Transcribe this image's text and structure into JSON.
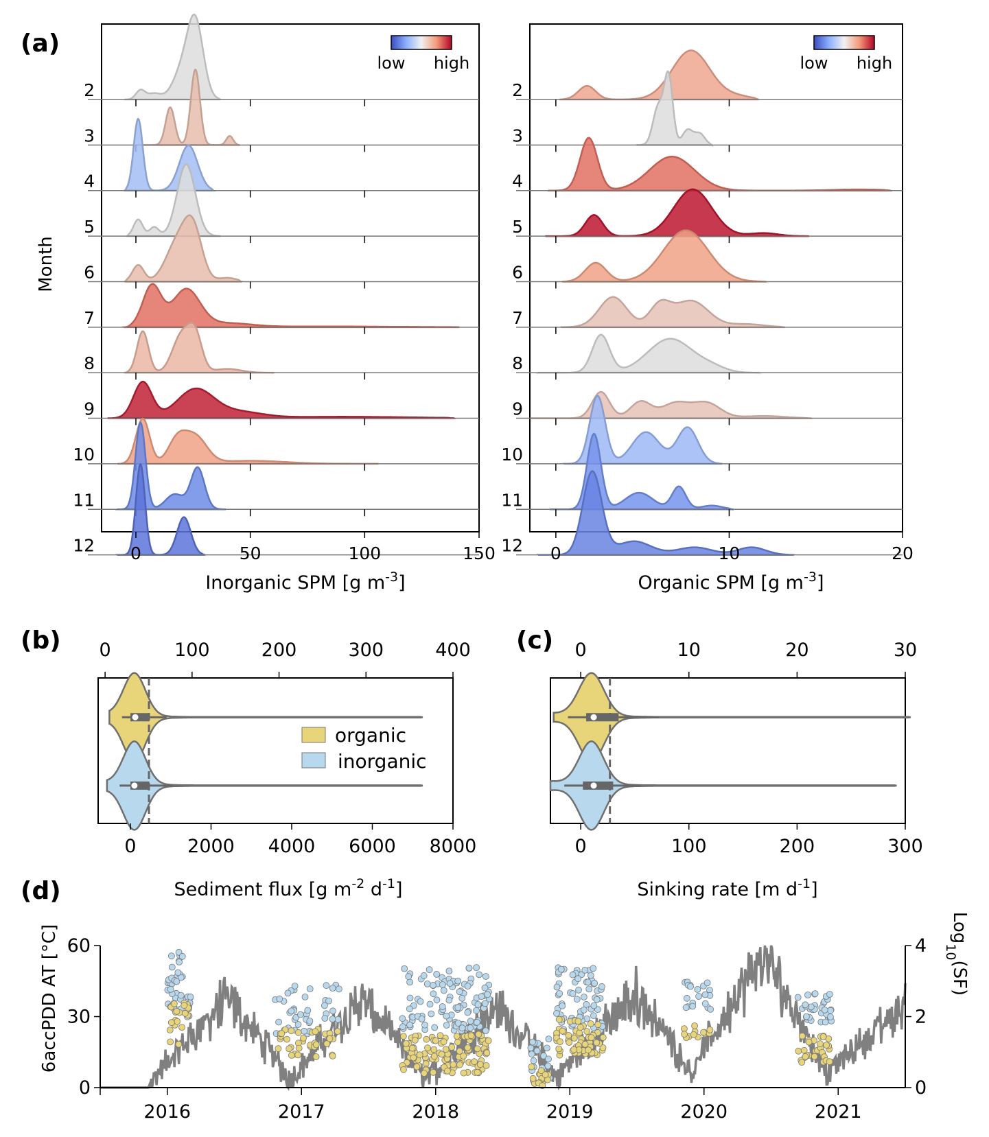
{
  "chart_data": [
    {
      "panel": "a-left",
      "panel_label": "(a)",
      "type": "area",
      "subtype": "ridgeline-kde",
      "xlabel": "Inorganic SPM [g m^-3]",
      "ylabel": "Month",
      "xlim": [
        -15,
        150
      ],
      "xticks": [
        0,
        50,
        100,
        150
      ],
      "colorbar": {
        "low_label": "low",
        "high_label": "high",
        "low_color": "#3b4cc0",
        "high_color": "#b40426"
      },
      "months": [
        {
          "month": "2",
          "color_level": 0.5,
          "range": [
            -5,
            37
          ],
          "peaks": [
            [
              2,
              0.12,
              2
            ],
            [
              8,
              0.08,
              3
            ],
            [
              20,
              0.35,
              4
            ],
            [
              26,
              1.0,
              3.5
            ]
          ]
        },
        {
          "month": "3",
          "color_level": 0.62,
          "range": [
            0,
            45
          ],
          "peaks": [
            [
              15,
              0.5,
              2
            ],
            [
              26,
              1.0,
              2
            ],
            [
              41,
              0.12,
              1.5
            ]
          ]
        },
        {
          "month": "4",
          "color_level": 0.32,
          "range": [
            -5,
            34
          ],
          "peaks": [
            [
              1,
              0.95,
              2
            ],
            [
              23,
              0.6,
              4
            ]
          ]
        },
        {
          "month": "5",
          "color_level": 0.5,
          "range": [
            -4,
            37
          ],
          "peaks": [
            [
              1,
              0.22,
              2
            ],
            [
              8,
              0.12,
              2
            ],
            [
              22,
              0.95,
              4
            ]
          ]
        },
        {
          "month": "6",
          "color_level": 0.62,
          "range": [
            -5,
            46
          ],
          "peaks": [
            [
              1,
              0.22,
              2.5
            ],
            [
              18,
              0.5,
              5
            ],
            [
              25,
              0.65,
              4
            ],
            [
              40,
              0.05,
              4
            ]
          ]
        },
        {
          "month": "7",
          "color_level": 0.82,
          "range": [
            -5,
            141
          ],
          "peaks": [
            [
              7,
              0.55,
              4
            ],
            [
              22,
              0.5,
              6
            ],
            [
              40,
              0.05,
              10
            ],
            [
              80,
              0.01,
              30
            ]
          ]
        },
        {
          "month": "8",
          "color_level": 0.64,
          "range": [
            -5,
            60
          ],
          "peaks": [
            [
              3,
              0.55,
              2.5
            ],
            [
              20,
              0.5,
              4
            ],
            [
              26,
              0.45,
              3
            ],
            [
              40,
              0.05,
              6
            ]
          ]
        },
        {
          "month": "9",
          "color_level": 0.95,
          "range": [
            -12,
            139
          ],
          "peaks": [
            [
              3,
              0.48,
              4
            ],
            [
              26,
              0.38,
              8
            ],
            [
              45,
              0.08,
              10
            ],
            [
              90,
              0.02,
              30
            ]
          ]
        },
        {
          "month": "10",
          "color_level": 0.72,
          "range": [
            -8,
            106
          ],
          "peaks": [
            [
              3,
              0.6,
              3
            ],
            [
              18,
              0.3,
              4
            ],
            [
              26,
              0.35,
              5
            ],
            [
              50,
              0.04,
              15
            ]
          ]
        },
        {
          "month": "11",
          "color_level": 0.16,
          "range": [
            -8,
            39
          ],
          "peaks": [
            [
              2,
              1.15,
              2.2
            ],
            [
              17,
              0.2,
              4
            ],
            [
              27,
              0.55,
              3
            ]
          ]
        },
        {
          "month": "12",
          "color_level": 0.1,
          "range": [
            -8,
            30
          ],
          "peaks": [
            [
              2,
              1.2,
              2
            ],
            [
              21,
              0.5,
              3
            ]
          ]
        }
      ]
    },
    {
      "panel": "a-right",
      "type": "area",
      "subtype": "ridgeline-kde",
      "xlabel": "Organic SPM [g m^-3]",
      "xlim": [
        -1.5,
        20
      ],
      "xticks": [
        0,
        10,
        20
      ],
      "colorbar": {
        "low_label": "low",
        "high_label": "high",
        "low_color": "#3b4cc0",
        "high_color": "#b40426"
      },
      "months": [
        {
          "month": "2",
          "color_level": 0.7,
          "range": [
            0.2,
            11.7
          ],
          "peaks": [
            [
              1.8,
              0.18,
              0.5
            ],
            [
              7.8,
              0.65,
              1.1
            ],
            [
              10.5,
              0.04,
              0.8
            ]
          ]
        },
        {
          "month": "3",
          "color_level": 0.5,
          "range": [
            4.7,
            9
          ],
          "peaks": [
            [
              6.5,
              0.9,
              0.25
            ],
            [
              5.9,
              0.5,
              0.3
            ],
            [
              7.6,
              0.2,
              0.3
            ],
            [
              8.3,
              0.15,
              0.3
            ]
          ]
        },
        {
          "month": "4",
          "color_level": 0.82,
          "range": [
            -0.4,
            19.3
          ],
          "peaks": [
            [
              1.9,
              0.7,
              0.5
            ],
            [
              6.7,
              0.45,
              1.3
            ],
            [
              17.5,
              0.015,
              1.5
            ]
          ]
        },
        {
          "month": "5",
          "color_level": 0.97,
          "range": [
            -0.6,
            14.6
          ],
          "peaks": [
            [
              2.2,
              0.28,
              0.5
            ],
            [
              7.9,
              0.62,
              1.1
            ],
            [
              12,
              0.04,
              0.8
            ]
          ]
        },
        {
          "month": "6",
          "color_level": 0.72,
          "range": [
            0.4,
            12.1
          ],
          "peaks": [
            [
              2.3,
              0.25,
              0.6
            ],
            [
              7.5,
              0.68,
              1.3
            ]
          ]
        },
        {
          "month": "7",
          "color_level": 0.6,
          "range": [
            0.3,
            13.2
          ],
          "peaks": [
            [
              3.3,
              0.4,
              0.8
            ],
            [
              6,
              0.28,
              0.6
            ],
            [
              7.8,
              0.35,
              1
            ],
            [
              11,
              0.04,
              1
            ]
          ]
        },
        {
          "month": "8",
          "color_level": 0.5,
          "range": [
            -1,
            11.7
          ],
          "peaks": [
            [
              2.6,
              0.5,
              0.5
            ],
            [
              6.6,
              0.45,
              1.3
            ],
            [
              9,
              0.06,
              0.8
            ]
          ]
        },
        {
          "month": "9",
          "color_level": 0.6,
          "range": [
            -1.4,
            14.7
          ],
          "peaks": [
            [
              2.6,
              0.35,
              0.5
            ],
            [
              4.9,
              0.22,
              0.6
            ],
            [
              6.9,
              0.2,
              0.8
            ],
            [
              8.7,
              0.2,
              0.8
            ],
            [
              12,
              0.03,
              1.2
            ]
          ]
        },
        {
          "month": "10",
          "color_level": 0.3,
          "range": [
            0.5,
            9.6
          ],
          "peaks": [
            [
              2.4,
              0.9,
              0.45
            ],
            [
              5.2,
              0.42,
              0.8
            ],
            [
              7.6,
              0.48,
              0.6
            ]
          ]
        },
        {
          "month": "11",
          "color_level": 0.18,
          "range": [
            -0.3,
            10.2
          ],
          "peaks": [
            [
              2.2,
              1.0,
              0.4
            ],
            [
              4.8,
              0.22,
              0.8
            ],
            [
              7.1,
              0.3,
              0.4
            ],
            [
              9,
              0.05,
              0.6
            ]
          ]
        },
        {
          "month": "12",
          "color_level": 0.14,
          "range": [
            -1,
            13.7
          ],
          "peaks": [
            [
              2.1,
              1.1,
              0.55
            ],
            [
              4.5,
              0.18,
              1
            ],
            [
              8,
              0.1,
              1
            ],
            [
              11.3,
              0.1,
              0.8
            ]
          ]
        }
      ]
    },
    {
      "panel": "b",
      "panel_label": "(b)",
      "type": "violin",
      "xlabel_bottom": "Sediment flux [g m^-2 d^-1]",
      "xlim_bottom": [
        -800,
        8000
      ],
      "xticks_bottom": [
        0,
        2000,
        4000,
        6000,
        8000
      ],
      "xlim_top": [
        -8,
        400
      ],
      "xticks_top": [
        0,
        100,
        200,
        300,
        400
      ],
      "dashed_line_x": 460,
      "legend": [
        {
          "label": "organic",
          "color": "#e8d479"
        },
        {
          "label": "inorganic",
          "color": "#b8d8ee"
        }
      ],
      "legend_placement": "center-right",
      "series": [
        {
          "name": "organic",
          "color": "#e8d479",
          "min": -520,
          "max": 7250,
          "median": 120,
          "q1": 0,
          "q3": 470,
          "whisker_high": 900,
          "width_peak_at": 100
        },
        {
          "name": "inorganic",
          "color": "#b8d8ee",
          "min": -580,
          "max": 7250,
          "median": 100,
          "q1": 0,
          "q3": 470,
          "whisker_high": 1050,
          "width_peak_at": 100
        }
      ]
    },
    {
      "panel": "c",
      "panel_label": "(c)",
      "type": "violin",
      "xlabel_bottom": "Sinking rate [m d^-1]",
      "xlim_bottom": [
        -28,
        300
      ],
      "xticks_bottom": [
        0,
        100,
        200,
        300
      ],
      "xlim_top": [
        -2.8,
        30
      ],
      "xticks_top": [
        0,
        10,
        20,
        30
      ],
      "dashed_line_x": 27,
      "series": [
        {
          "name": "organic",
          "color": "#e8d479",
          "min": -25,
          "max": 305,
          "median": 12,
          "q1": 5,
          "q3": 35,
          "whisker_high": 72,
          "width_peak_at": 10
        },
        {
          "name": "inorganic",
          "color": "#b8d8ee",
          "min": -28,
          "max": 292,
          "median": 12,
          "q1": 2,
          "q3": 30,
          "whisker_high": 55,
          "width_peak_at": 10
        }
      ]
    },
    {
      "panel": "d",
      "panel_label": "(d)",
      "type": "line",
      "ylabel_left": "6accPDD AT [°C]",
      "ylabel_right": "Log10(SF)",
      "ylim_left": [
        0,
        60
      ],
      "yticks_left": [
        0,
        30,
        60
      ],
      "ylim_right": [
        0,
        4
      ],
      "yticks_right": [
        0,
        2,
        4
      ],
      "xlim": [
        2015.5,
        2021.5
      ],
      "year_labels": [
        "2016",
        "2017",
        "2018",
        "2019",
        "2020",
        "2021"
      ],
      "line_color": "#808080",
      "season_peaks": [
        {
          "year": 2016,
          "start": 2015.85,
          "peak_t": 2016.45,
          "peak": 38,
          "end": 2016.95
        },
        {
          "year": 2017,
          "start": 2016.88,
          "peak_t": 2017.45,
          "peak": 38,
          "end": 2017.95
        },
        {
          "year": 2018,
          "start": 2017.9,
          "peak_t": 2018.45,
          "peak": 35,
          "end": 2018.95
        },
        {
          "year": 2019,
          "start": 2018.85,
          "peak_t": 2019.5,
          "peak": 40,
          "end": 2019.97
        },
        {
          "year": 2020,
          "start": 2019.85,
          "peak_t": 2020.45,
          "peak": 57,
          "end": 2020.95
        },
        {
          "year": 2021,
          "start": 2020.82,
          "peak_t": 2021.5,
          "peak": 35,
          "end": 2021.95
        }
      ],
      "scatter_series": [
        {
          "name": "inorganic",
          "color": "#b8d8ee",
          "clusters": [
            {
              "t0": 2016.0,
              "t1": 2016.12,
              "y_lo": 2.2,
              "y_hi": 3.85,
              "n": 40
            },
            {
              "t0": 2016.14,
              "t1": 2016.18,
              "y_lo": 1.9,
              "y_hi": 2.7,
              "n": 8
            },
            {
              "t0": 2016.8,
              "t1": 2017.1,
              "y_lo": 1.5,
              "y_hi": 2.9,
              "n": 30
            },
            {
              "t0": 2017.15,
              "t1": 2017.28,
              "y_lo": 1.9,
              "y_hi": 2.9,
              "n": 12
            },
            {
              "t0": 2017.75,
              "t1": 2018.4,
              "y_lo": 1.6,
              "y_hi": 3.4,
              "n": 110
            },
            {
              "t0": 2018.7,
              "t1": 2018.85,
              "y_lo": 0.2,
              "y_hi": 1.5,
              "n": 20
            },
            {
              "t0": 2018.9,
              "t1": 2019.25,
              "y_lo": 1.6,
              "y_hi": 3.4,
              "n": 70
            },
            {
              "t0": 2019.85,
              "t1": 2020.05,
              "y_lo": 2.2,
              "y_hi": 3.0,
              "n": 20
            },
            {
              "t0": 2020.7,
              "t1": 2020.95,
              "y_lo": 1.8,
              "y_hi": 2.65,
              "n": 35
            }
          ]
        },
        {
          "name": "organic",
          "color": "#e8d479",
          "clusters": [
            {
              "t0": 2016.0,
              "t1": 2016.18,
              "y_lo": 1.2,
              "y_hi": 2.4,
              "n": 22
            },
            {
              "t0": 2016.8,
              "t1": 2017.28,
              "y_lo": 0.85,
              "y_hi": 1.7,
              "n": 35
            },
            {
              "t0": 2017.75,
              "t1": 2018.4,
              "y_lo": 0.4,
              "y_hi": 1.5,
              "n": 120
            },
            {
              "t0": 2018.7,
              "t1": 2018.85,
              "y_lo": 0.05,
              "y_hi": 0.6,
              "n": 18
            },
            {
              "t0": 2018.9,
              "t1": 2019.25,
              "y_lo": 0.9,
              "y_hi": 1.95,
              "n": 60
            },
            {
              "t0": 2019.85,
              "t1": 2020.05,
              "y_lo": 1.3,
              "y_hi": 1.75,
              "n": 15
            },
            {
              "t0": 2020.7,
              "t1": 2020.95,
              "y_lo": 0.7,
              "y_hi": 1.5,
              "n": 30
            }
          ]
        }
      ]
    }
  ]
}
